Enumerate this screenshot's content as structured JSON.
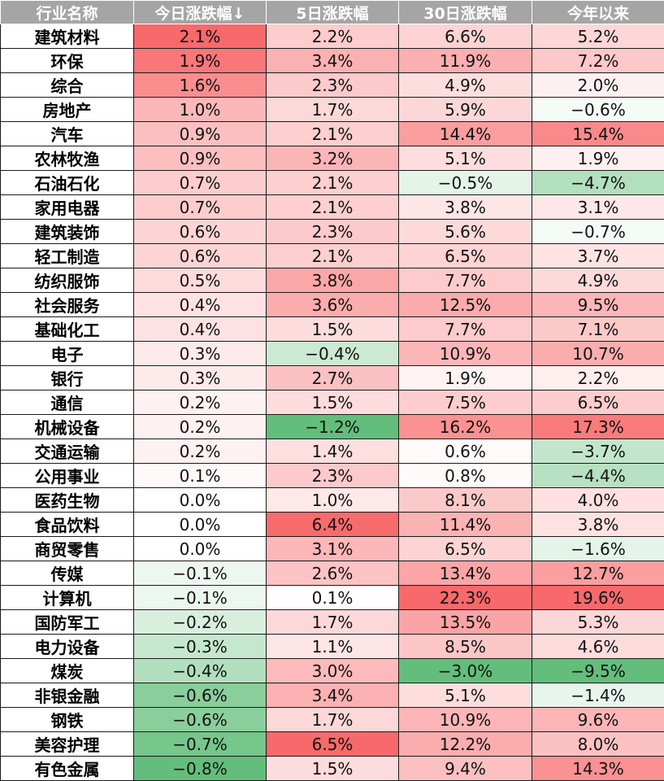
{
  "chart_data": {
    "type": "table",
    "columns": [
      "行业名称",
      "今日涨跌幅↓",
      "5日涨跌幅",
      "30日涨跌幅",
      "今年以来"
    ],
    "rows": [
      [
        "建筑材料",
        "2.1%",
        "2.2%",
        "6.6%",
        "5.2%"
      ],
      [
        "环保",
        "1.9%",
        "3.4%",
        "11.9%",
        "7.2%"
      ],
      [
        "综合",
        "1.6%",
        "2.3%",
        "4.9%",
        "2.0%"
      ],
      [
        "房地产",
        "1.0%",
        "1.7%",
        "5.9%",
        "−0.6%"
      ],
      [
        "汽车",
        "0.9%",
        "2.1%",
        "14.4%",
        "15.4%"
      ],
      [
        "农林牧渔",
        "0.9%",
        "3.2%",
        "5.1%",
        "1.9%"
      ],
      [
        "石油石化",
        "0.7%",
        "2.1%",
        "−0.5%",
        "−4.7%"
      ],
      [
        "家用电器",
        "0.7%",
        "2.1%",
        "3.8%",
        "3.1%"
      ],
      [
        "建筑装饰",
        "0.6%",
        "2.3%",
        "5.6%",
        "−0.7%"
      ],
      [
        "轻工制造",
        "0.6%",
        "2.1%",
        "6.5%",
        "3.7%"
      ],
      [
        "纺织服饰",
        "0.5%",
        "3.8%",
        "7.7%",
        "4.9%"
      ],
      [
        "社会服务",
        "0.4%",
        "3.6%",
        "12.5%",
        "9.5%"
      ],
      [
        "基础化工",
        "0.4%",
        "1.5%",
        "7.7%",
        "7.1%"
      ],
      [
        "电子",
        "0.3%",
        "−0.4%",
        "10.9%",
        "10.7%"
      ],
      [
        "银行",
        "0.3%",
        "2.7%",
        "1.9%",
        "2.2%"
      ],
      [
        "通信",
        "0.2%",
        "1.5%",
        "7.5%",
        "6.5%"
      ],
      [
        "机械设备",
        "0.2%",
        "−1.2%",
        "16.2%",
        "17.3%"
      ],
      [
        "交通运输",
        "0.2%",
        "1.4%",
        "0.6%",
        "−3.7%"
      ],
      [
        "公用事业",
        "0.1%",
        "2.3%",
        "0.8%",
        "−4.4%"
      ],
      [
        "医药生物",
        "0.0%",
        "1.0%",
        "8.1%",
        "4.0%"
      ],
      [
        "食品饮料",
        "0.0%",
        "6.4%",
        "11.4%",
        "3.8%"
      ],
      [
        "商贸零售",
        "0.0%",
        "3.1%",
        "6.5%",
        "−1.6%"
      ],
      [
        "传媒",
        "−0.1%",
        "2.6%",
        "13.4%",
        "12.7%"
      ],
      [
        "计算机",
        "−0.1%",
        "0.1%",
        "22.3%",
        "19.6%"
      ],
      [
        "国防军工",
        "−0.2%",
        "1.7%",
        "13.5%",
        "5.3%"
      ],
      [
        "电力设备",
        "−0.3%",
        "1.1%",
        "8.5%",
        "4.6%"
      ],
      [
        "煤炭",
        "−0.4%",
        "3.0%",
        "−3.0%",
        "−9.5%"
      ],
      [
        "非银金融",
        "−0.6%",
        "3.4%",
        "5.1%",
        "−1.4%"
      ],
      [
        "钢铁",
        "−0.6%",
        "1.7%",
        "10.9%",
        "9.6%"
      ],
      [
        "美容护理",
        "−0.7%",
        "6.5%",
        "12.2%",
        "8.0%"
      ],
      [
        "有色金属",
        "−0.8%",
        "1.5%",
        "9.4%",
        "14.3%"
      ]
    ],
    "color_scale": {
      "positive": "#f8696b",
      "neutral": "#ffffff",
      "negative": "#63be7b"
    }
  }
}
